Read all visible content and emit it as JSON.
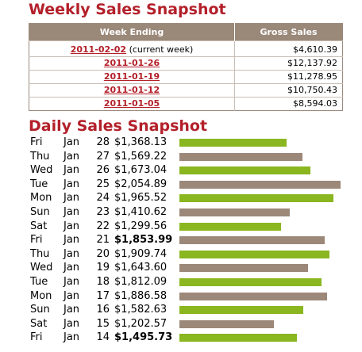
{
  "weekly": {
    "title": "Weekly Sales Snapshot",
    "headers": {
      "week_ending": "Week Ending",
      "gross_sales": "Gross Sales"
    },
    "rows": [
      {
        "date": "2011-02-02",
        "note": " (current week)",
        "sales": "$4,610.39"
      },
      {
        "date": "2011-01-26",
        "note": "",
        "sales": "$12,137.92"
      },
      {
        "date": "2011-01-19",
        "note": "",
        "sales": "$11,278.95"
      },
      {
        "date": "2011-01-12",
        "note": "",
        "sales": "$10,750.43"
      },
      {
        "date": "2011-01-05",
        "note": "",
        "sales": "$8,594.03"
      }
    ]
  },
  "daily": {
    "title": "Daily Sales Snapshot",
    "colors": {
      "green": "#8ab61f",
      "brown": "#9c8879"
    },
    "max_value": 2054.89,
    "rows": [
      {
        "dow": "Fri",
        "mon": "Jan",
        "day": "28",
        "amount": "$1,368.13",
        "value": 1368.13,
        "color": "green",
        "bold": false
      },
      {
        "dow": "Thu",
        "mon": "Jan",
        "day": "27",
        "amount": "$1,569.22",
        "value": 1569.22,
        "color": "brown",
        "bold": false
      },
      {
        "dow": "Wed",
        "mon": "Jan",
        "day": "26",
        "amount": "$1,673.04",
        "value": 1673.04,
        "color": "green",
        "bold": false
      },
      {
        "dow": "Tue",
        "mon": "Jan",
        "day": "25",
        "amount": "$2,054.89",
        "value": 2054.89,
        "color": "brown",
        "bold": false
      },
      {
        "dow": "Mon",
        "mon": "Jan",
        "day": "24",
        "amount": "$1,965.52",
        "value": 1965.52,
        "color": "green",
        "bold": false
      },
      {
        "dow": "Sun",
        "mon": "Jan",
        "day": "23",
        "amount": "$1,410.62",
        "value": 1410.62,
        "color": "brown",
        "bold": false
      },
      {
        "dow": "Sat",
        "mon": "Jan",
        "day": "22",
        "amount": "$1,299.56",
        "value": 1299.56,
        "color": "green",
        "bold": false
      },
      {
        "dow": "Fri",
        "mon": "Jan",
        "day": "21",
        "amount": "$1,853.99",
        "value": 1853.99,
        "color": "brown",
        "bold": true
      },
      {
        "dow": "Thu",
        "mon": "Jan",
        "day": "20",
        "amount": "$1,909.74",
        "value": 1909.74,
        "color": "green",
        "bold": false
      },
      {
        "dow": "Wed",
        "mon": "Jan",
        "day": "19",
        "amount": "$1,643.60",
        "value": 1643.6,
        "color": "brown",
        "bold": false
      },
      {
        "dow": "Tue",
        "mon": "Jan",
        "day": "18",
        "amount": "$1,812.09",
        "value": 1812.09,
        "color": "green",
        "bold": false
      },
      {
        "dow": "Mon",
        "mon": "Jan",
        "day": "17",
        "amount": "$1,886.58",
        "value": 1886.58,
        "color": "brown",
        "bold": false
      },
      {
        "dow": "Sun",
        "mon": "Jan",
        "day": "16",
        "amount": "$1,582.63",
        "value": 1582.63,
        "color": "green",
        "bold": false
      },
      {
        "dow": "Sat",
        "mon": "Jan",
        "day": "15",
        "amount": "$1,202.57",
        "value": 1202.57,
        "color": "brown",
        "bold": false
      },
      {
        "dow": "Fri",
        "mon": "Jan",
        "day": "14",
        "amount": "$1,495.73",
        "value": 1495.73,
        "color": "green",
        "bold": true
      }
    ]
  }
}
